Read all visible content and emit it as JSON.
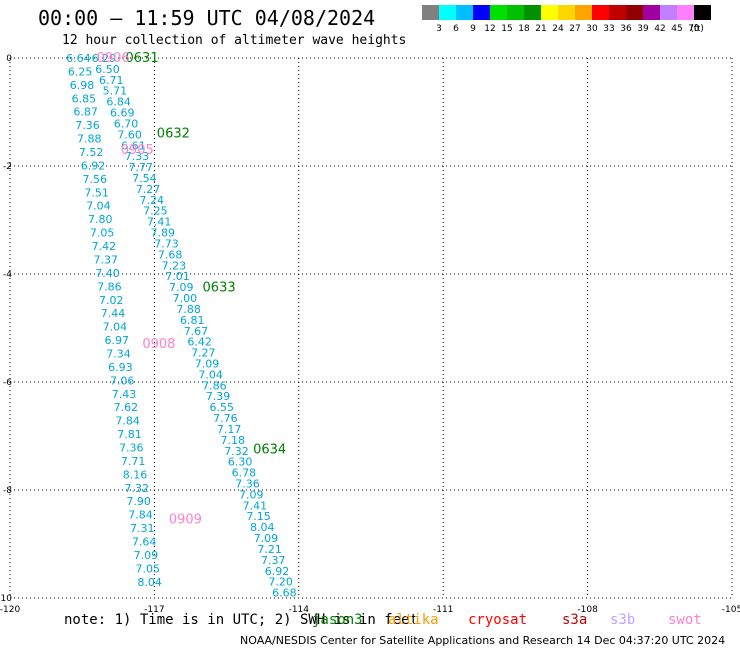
{
  "header": {
    "title": "00:00 – 11:59 UTC 04/08/2024",
    "subtitle": "12 hour collection of altimeter wave heights"
  },
  "colorbar": {
    "unit": "(ft)",
    "colors": [
      "#808080",
      "#00ffff",
      "#00bfff",
      "#0000ff",
      "#00e000",
      "#00c000",
      "#009000",
      "#ffff00",
      "#ffd700",
      "#ffa500",
      "#ff0000",
      "#c00000",
      "#900000",
      "#a000a0",
      "#c080ff",
      "#ff80ff",
      "#000000"
    ],
    "labels": [
      "3",
      "6",
      "9",
      "12",
      "15",
      "18",
      "21",
      "24",
      "27",
      "30",
      "33",
      "36",
      "39",
      "42",
      "45",
      "70"
    ]
  },
  "chart_data": {
    "type": "scatter",
    "xlim": [
      -120,
      -105
    ],
    "ylim": [
      -10,
      0
    ],
    "x_ticks": [
      "-120",
      "-117",
      "-114",
      "-111",
      "-108",
      "-105"
    ],
    "y_ticks": [
      "0",
      "-2",
      "-4",
      "-6",
      "-8",
      "-10"
    ],
    "value_color": "#00a6d6",
    "tracks": [
      {
        "name": "track-a",
        "lon0": -118.58,
        "lat0": 0.0,
        "lon1": -117.1,
        "lat1": -9.7,
        "values": [
          "6.64",
          "6.25",
          "6.98",
          "6.85",
          "6.87",
          "7.36",
          "7.88",
          "7.52",
          "6.92",
          "7.56",
          "7.51",
          "7.04",
          "7.80",
          "7.05",
          "7.42",
          "7.37",
          "7.40",
          "7.86",
          "7.02",
          "7.44",
          "7.04",
          "6.97",
          "7.34",
          "6.93",
          "7.06",
          "7.43",
          "7.62",
          "7.84",
          "7.81",
          "7.36",
          "7.71",
          "8.16",
          "7.32",
          "7.90",
          "7.84",
          "7.31",
          "7.64",
          "7.09",
          "7.05",
          "8.04"
        ]
      },
      {
        "name": "track-b",
        "lon0": -118.05,
        "lat0": 0.0,
        "lon1": -114.3,
        "lat1": -9.9,
        "values": [
          "6.29",
          "6.50",
          "6.71",
          "5.71",
          "6.84",
          "6.69",
          "6.70",
          "7.60",
          "6.61",
          "7.33",
          "7.77",
          "7.54",
          "7.27",
          "7.24",
          "7.25",
          "7.41",
          "7.89",
          "7.73",
          "7.68",
          "7.23",
          "7.01",
          "7.09",
          "7.00",
          "7.88",
          "6.81",
          "7.67",
          "6.42",
          "7.27",
          "7.09",
          "7.04",
          "7.86",
          "7.39",
          "6.55",
          "7.76",
          "7.17",
          "7.18",
          "7.32",
          "6.30",
          "6.78",
          "7.36",
          "7.09",
          "7.41",
          "7.15",
          "8.04",
          "7.09",
          "7.21",
          "7.37",
          "6.92",
          "7.20",
          "6.68"
        ]
      }
    ],
    "pass_labels": [
      {
        "text": "0631",
        "lon": -117.6,
        "lat": 0.0,
        "color": "#008000"
      },
      {
        "text": "0632",
        "lon": -116.95,
        "lat": -1.4,
        "color": "#008000"
      },
      {
        "text": "0633",
        "lon": -116.0,
        "lat": -4.25,
        "color": "#008000"
      },
      {
        "text": "0634",
        "lon": -114.95,
        "lat": -7.25,
        "color": "#008000"
      },
      {
        "text": "0906",
        "lon": -118.2,
        "lat": 0.0,
        "color": "#ff80d0"
      },
      {
        "text": "0905",
        "lon": -117.7,
        "lat": -1.7,
        "color": "#ff80d0"
      },
      {
        "text": "0908",
        "lon": -117.25,
        "lat": -5.3,
        "color": "#ff80d0"
      },
      {
        "text": "0909",
        "lon": -116.7,
        "lat": -8.55,
        "color": "#ff80d0"
      }
    ]
  },
  "legend": {
    "note": "note:  1) Time is in UTC;  2) SWH is in feet",
    "missions": [
      {
        "name": "jason3",
        "color": "#008000"
      },
      {
        "name": "altika",
        "color": "#ff9900"
      },
      {
        "name": "cryosat",
        "color": "#ff0000"
      },
      {
        "name": "s3a",
        "color": "#c00000"
      },
      {
        "name": "s3b",
        "color": "#c0a0ff"
      },
      {
        "name": "swot",
        "color": "#ff80d0"
      }
    ]
  },
  "footer": {
    "text": "NOAA/NESDIS Center for Satellite Applications and Research   14 Dec 04:37:20 UTC 2024"
  }
}
